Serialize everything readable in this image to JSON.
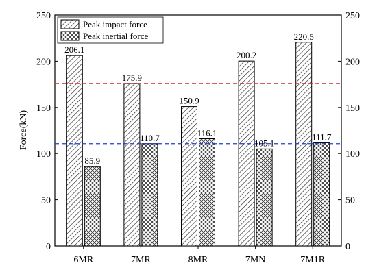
{
  "chart_data": {
    "type": "bar",
    "categories": [
      "6MR",
      "7MR",
      "8MR",
      "7MN",
      "7M1R"
    ],
    "series": [
      {
        "name": "Peak impact force",
        "values": [
          206.1,
          175.9,
          150.9,
          200.2,
          220.5
        ],
        "pattern": "diagonal-hatch"
      },
      {
        "name": "Peak inertial force",
        "values": [
          85.9,
          110.7,
          116.1,
          105.1,
          111.7
        ],
        "pattern": "cross-hatch"
      }
    ],
    "data_labels": {
      "impact": [
        "206.1",
        "175.9",
        "150.9",
        "200.2",
        "220.5"
      ],
      "inertial": [
        "85.9",
        "110.7",
        "116.1",
        "105.1",
        "111.7"
      ]
    },
    "ylabel": "Force(kN)",
    "xlabel": "",
    "ylim": [
      0,
      250
    ],
    "yticks": [
      0,
      50,
      100,
      150,
      200,
      250
    ],
    "right_axis_mirrored": true,
    "reference_lines": [
      {
        "value": 175.9,
        "color": "#d62728",
        "style": "dashed"
      },
      {
        "value": 110.7,
        "color": "#1f3fd6",
        "style": "dashed"
      }
    ],
    "legend_position": "top-left",
    "grid": false
  }
}
